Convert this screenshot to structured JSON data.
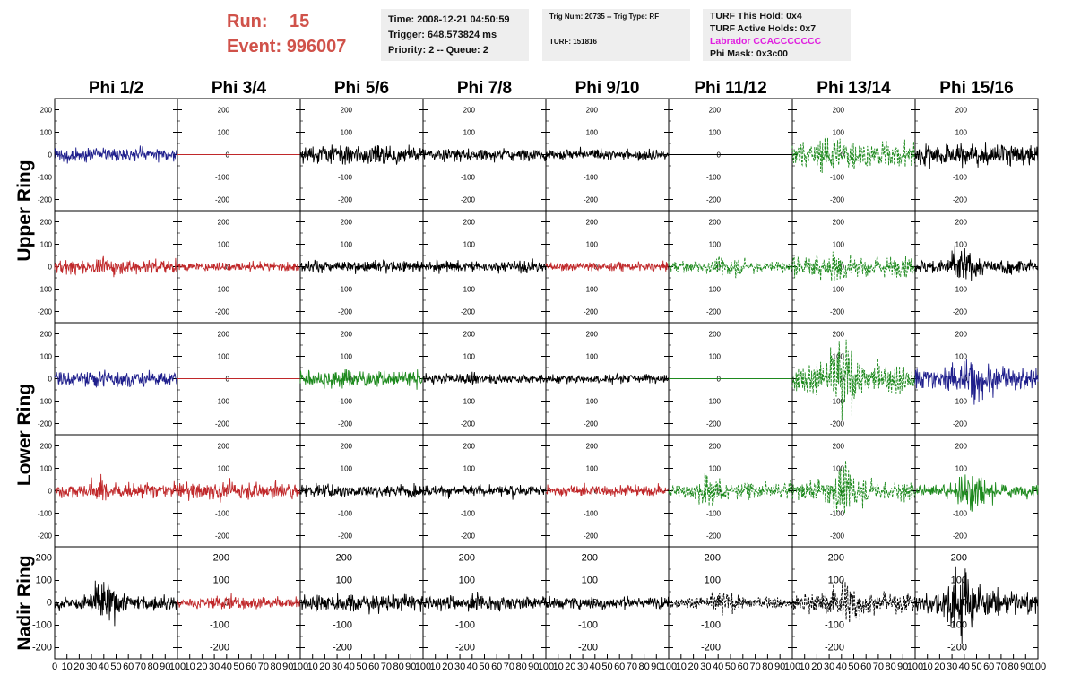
{
  "header": {
    "run_label": "Run:",
    "run_value": "15",
    "event_label": "Event:",
    "event_value": "996007"
  },
  "info_box_1": {
    "time": "Time: 2008-12-21 04:50:59",
    "trigger": "Trigger: 648.573824 ms",
    "priority": "Priority: 2 -- Queue: 2"
  },
  "info_box_2": {
    "trig_num": "Trig Num: 20735 -- Trig Type: RF",
    "turf": "TURF: 151816"
  },
  "info_box_3": {
    "this_hold": "TURF This Hold: 0x4",
    "active_holds": "TURF Active Holds: 0x7",
    "labrador": "Labrador CCACCCCCCC",
    "phi_mask": "Phi Mask: 0x3c00",
    "labrador_color": "#e020e0"
  },
  "chart_data": {
    "type": "line",
    "columns": [
      "Phi 1/2",
      "Phi 3/4",
      "Phi 5/6",
      "Phi 7/8",
      "Phi 9/10",
      "Phi 11/12",
      "Phi 13/14",
      "Phi 15/16"
    ],
    "ring_labels": [
      {
        "label": "Upper Ring",
        "rows": [
          0,
          1
        ]
      },
      {
        "label": "Lower Ring",
        "rows": [
          2,
          3
        ]
      },
      {
        "label": "Nadir Ring",
        "rows": [
          4
        ]
      }
    ],
    "ylim": [
      -250,
      250
    ],
    "yticks": [
      -200,
      -100,
      0,
      100,
      200
    ],
    "xlim": [
      0,
      100
    ],
    "xticks": [
      0,
      10,
      20,
      30,
      40,
      50,
      60,
      70,
      80,
      90,
      100
    ],
    "colors": {
      "blue": "#1f1f8c",
      "red": "#c0282a",
      "green": "#1e8a1e",
      "black": "#000000"
    },
    "grid": [
      [
        {
          "color": "blue",
          "amp": 22,
          "burst": 0,
          "dashed": false,
          "flat": false
        },
        {
          "color": "red",
          "amp": 0,
          "burst": 0,
          "dashed": false,
          "flat": true
        },
        {
          "color": "black",
          "amp": 30,
          "burst": 10,
          "dashed": false,
          "flat": false
        },
        {
          "color": "black",
          "amp": 20,
          "burst": 0,
          "dashed": false,
          "flat": false
        },
        {
          "color": "black",
          "amp": 18,
          "burst": 0,
          "dashed": false,
          "flat": false
        },
        {
          "color": "black",
          "amp": 0,
          "burst": 0,
          "dashed": false,
          "flat": true
        },
        {
          "color": "green",
          "amp": 45,
          "burst": 60,
          "dashed": true,
          "flat": false
        },
        {
          "color": "black",
          "amp": 35,
          "burst": 20,
          "dashed": false,
          "flat": false
        }
      ],
      [
        {
          "color": "red",
          "amp": 25,
          "burst": 15,
          "dashed": false,
          "flat": false
        },
        {
          "color": "red",
          "amp": 15,
          "burst": 0,
          "dashed": false,
          "flat": false
        },
        {
          "color": "black",
          "amp": 20,
          "burst": 0,
          "dashed": false,
          "flat": false
        },
        {
          "color": "black",
          "amp": 20,
          "burst": 0,
          "dashed": false,
          "flat": false
        },
        {
          "color": "red",
          "amp": 15,
          "burst": 0,
          "dashed": false,
          "flat": false
        },
        {
          "color": "green",
          "amp": 20,
          "burst": 30,
          "dashed": true,
          "flat": false
        },
        {
          "color": "green",
          "amp": 35,
          "burst": 50,
          "dashed": true,
          "flat": false
        },
        {
          "color": "black",
          "amp": 25,
          "burst": 60,
          "dashed": false,
          "flat": false
        }
      ],
      [
        {
          "color": "blue",
          "amp": 25,
          "burst": 30,
          "dashed": false,
          "flat": false
        },
        {
          "color": "red",
          "amp": 0,
          "burst": 0,
          "dashed": false,
          "flat": true
        },
        {
          "color": "green",
          "amp": 28,
          "burst": 20,
          "dashed": false,
          "flat": false
        },
        {
          "color": "black",
          "amp": 18,
          "burst": 0,
          "dashed": false,
          "flat": false
        },
        {
          "color": "black",
          "amp": 15,
          "burst": 0,
          "dashed": false,
          "flat": false
        },
        {
          "color": "green",
          "amp": 0,
          "burst": 0,
          "dashed": false,
          "flat": true
        },
        {
          "color": "green",
          "amp": 50,
          "burst": 130,
          "dashed": true,
          "flat": false
        },
        {
          "color": "blue",
          "amp": 40,
          "burst": 80,
          "dashed": false,
          "flat": false
        }
      ],
      [
        {
          "color": "red",
          "amp": 25,
          "burst": 30,
          "dashed": false,
          "flat": false
        },
        {
          "color": "red",
          "amp": 28,
          "burst": 20,
          "dashed": false,
          "flat": false
        },
        {
          "color": "black",
          "amp": 22,
          "burst": 10,
          "dashed": false,
          "flat": false
        },
        {
          "color": "black",
          "amp": 20,
          "burst": 5,
          "dashed": false,
          "flat": false
        },
        {
          "color": "red",
          "amp": 20,
          "burst": 5,
          "dashed": false,
          "flat": false
        },
        {
          "color": "green",
          "amp": 25,
          "burst": 60,
          "dashed": true,
          "flat": false
        },
        {
          "color": "green",
          "amp": 35,
          "burst": 80,
          "dashed": true,
          "flat": false
        },
        {
          "color": "green",
          "amp": 20,
          "burst": 80,
          "dashed": false,
          "flat": false
        }
      ],
      [
        {
          "color": "black",
          "amp": 25,
          "burst": 80,
          "dashed": false,
          "flat": false
        },
        {
          "color": "red",
          "amp": 18,
          "burst": 30,
          "dashed": false,
          "flat": false
        },
        {
          "color": "black",
          "amp": 28,
          "burst": 20,
          "dashed": false,
          "flat": false
        },
        {
          "color": "black",
          "amp": 25,
          "burst": 15,
          "dashed": false,
          "flat": false
        },
        {
          "color": "black",
          "amp": 20,
          "burst": 10,
          "dashed": false,
          "flat": false
        },
        {
          "color": "black",
          "amp": 18,
          "burst": 40,
          "dashed": true,
          "flat": false
        },
        {
          "color": "black",
          "amp": 30,
          "burst": 80,
          "dashed": true,
          "flat": false
        },
        {
          "color": "black",
          "amp": 40,
          "burst": 130,
          "dashed": false,
          "flat": false
        }
      ]
    ]
  }
}
